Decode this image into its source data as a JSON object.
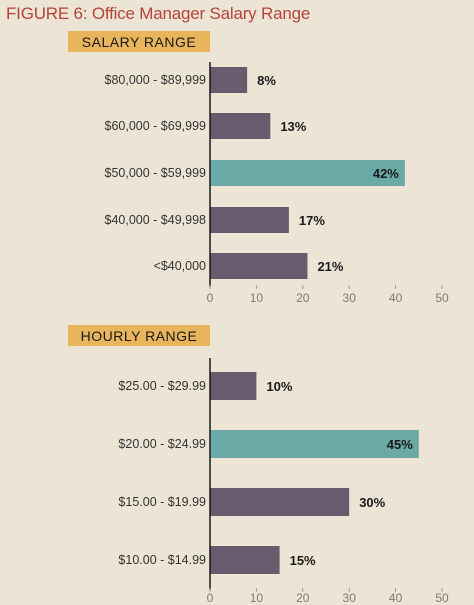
{
  "title": "FIGURE 6: Office Manager Salary Range",
  "colors": {
    "background": "#ece5d6",
    "bar": "#665c6e",
    "highlight": "#6aa9a6",
    "badge": "#e8b45c",
    "title": "#b6433a"
  },
  "chart_data": [
    {
      "type": "bar",
      "orientation": "horizontal",
      "title": "SALARY RANGE",
      "categories": [
        "$80,000 - $89,999",
        "$60,000 - $69,999",
        "$50,000 - $59,999",
        "$40,000 - $49,998",
        "<$40,000"
      ],
      "values": [
        8,
        13,
        42,
        17,
        21
      ],
      "value_labels": [
        "8%",
        "13%",
        "42%",
        "17%",
        "21%"
      ],
      "highlight_index": 2,
      "xlim": [
        0,
        50
      ],
      "xticks": [
        0,
        10,
        20,
        30,
        40,
        50
      ]
    },
    {
      "type": "bar",
      "orientation": "horizontal",
      "title": "HOURLY RANGE",
      "categories": [
        "$25.00 - $29.99",
        "$20.00 - $24.99",
        "$15.00 - $19.99",
        "$10.00 - $14.99"
      ],
      "values": [
        10,
        45,
        30,
        15
      ],
      "value_labels": [
        "10%",
        "45%",
        "30%",
        "15%"
      ],
      "highlight_index": 1,
      "xlim": [
        0,
        50
      ],
      "xticks": [
        0,
        10,
        20,
        30,
        40,
        50
      ]
    }
  ]
}
